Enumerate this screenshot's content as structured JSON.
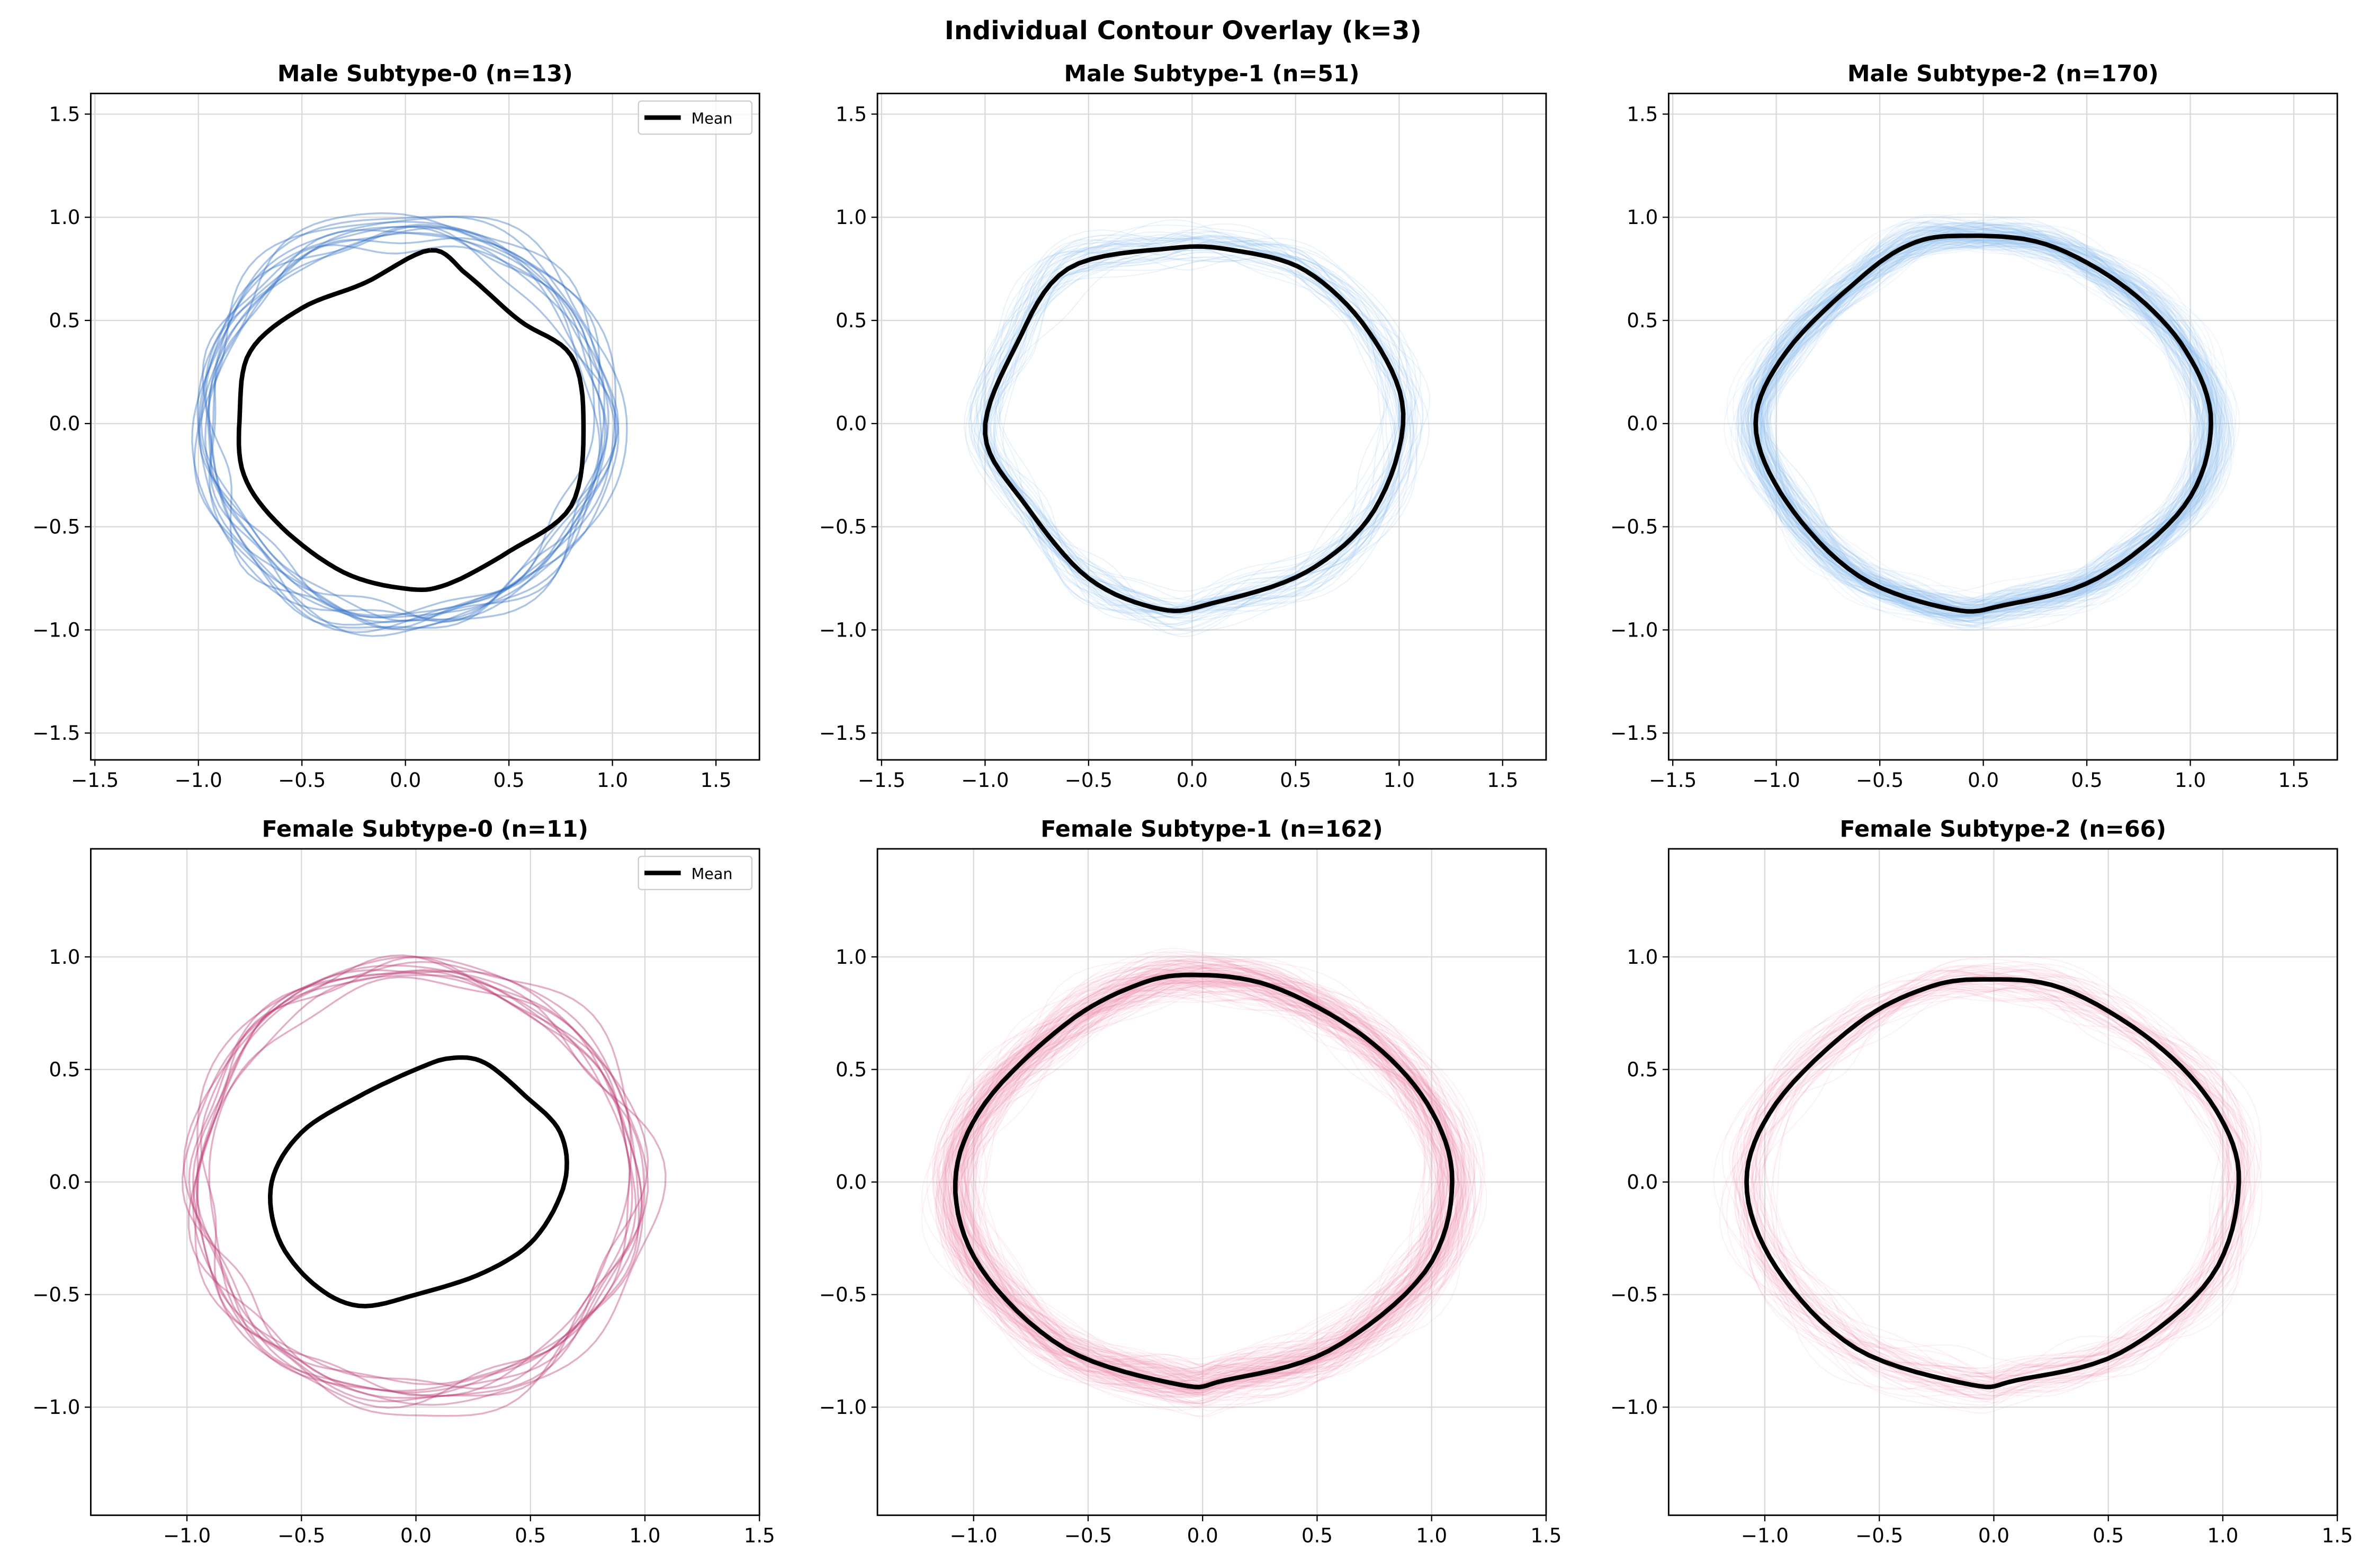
{
  "chart_data": {
    "type": "line",
    "title": "Individual Contour Overlay (k=3)",
    "legend_label": "Mean",
    "colors": {
      "male": "#2f6fc4",
      "male_light": "#8cbcf0",
      "female": "#b83a72",
      "female_light": "#f08db0",
      "mean": "#000000",
      "grid": "#d9d9d9"
    },
    "rows": [
      {
        "xlim": [
          -1.52,
          1.71
        ],
        "ylim": [
          -1.63,
          1.6
        ],
        "xticks": [
          -1.5,
          -1.0,
          -0.5,
          0.0,
          0.5,
          1.0,
          1.5
        ],
        "yticks": [
          -1.5,
          -1.0,
          -0.5,
          0.0,
          0.5,
          1.0,
          1.5
        ]
      },
      {
        "xlim": [
          -1.42,
          1.5
        ],
        "ylim": [
          -1.48,
          1.48
        ],
        "xticks": [
          -1.0,
          -0.5,
          0.0,
          0.5,
          1.0,
          1.5
        ],
        "yticks": [
          -1.0,
          -0.5,
          0.0,
          0.5,
          1.0
        ]
      }
    ],
    "panels": [
      {
        "title": "Male Subtype-0 (n=13)",
        "group": "male",
        "n": 13,
        "legend": true,
        "trace_shape": "circle",
        "trace_radius": 0.97,
        "trace_alpha": 0.4,
        "spread": 0.05,
        "mean": [
          [
            0.12,
            0.84
          ],
          [
            0.3,
            0.72
          ],
          [
            0.55,
            0.5
          ],
          [
            0.8,
            0.33
          ],
          [
            0.86,
            0
          ],
          [
            0.8,
            -0.4
          ],
          [
            0.5,
            -0.62
          ],
          [
            0.2,
            -0.78
          ],
          [
            0,
            -0.8
          ],
          [
            -0.3,
            -0.72
          ],
          [
            -0.6,
            -0.5
          ],
          [
            -0.78,
            -0.25
          ],
          [
            -0.8,
            0.05
          ],
          [
            -0.75,
            0.35
          ],
          [
            -0.5,
            0.56
          ],
          [
            -0.2,
            0.68
          ]
        ]
      },
      {
        "title": "Male Subtype-1 (n=51)",
        "group": "male",
        "n": 51,
        "legend": false,
        "trace_shape": "mean",
        "trace_alpha": 0.18,
        "spread": 0.06,
        "mean": [
          [
            -0.1,
            0.85
          ],
          [
            0.2,
            0.84
          ],
          [
            0.55,
            0.74
          ],
          [
            0.85,
            0.45
          ],
          [
            1.02,
            0.05
          ],
          [
            0.88,
            -0.42
          ],
          [
            0.55,
            -0.72
          ],
          [
            0.1,
            -0.87
          ],
          [
            -0.15,
            -0.9
          ],
          [
            -0.5,
            -0.75
          ],
          [
            -0.8,
            -0.4
          ],
          [
            -1.0,
            -0.05
          ],
          [
            -0.85,
            0.38
          ],
          [
            -0.6,
            0.75
          ]
        ]
      },
      {
        "title": "Male Subtype-2 (n=170)",
        "group": "male",
        "n": 170,
        "legend": false,
        "trace_shape": "mean",
        "trace_alpha": 0.12,
        "spread": 0.05,
        "mean": [
          [
            -0.1,
            0.91
          ],
          [
            0.3,
            0.87
          ],
          [
            0.7,
            0.65
          ],
          [
            0.98,
            0.35
          ],
          [
            1.1,
            0
          ],
          [
            0.97,
            -0.4
          ],
          [
            0.55,
            -0.75
          ],
          [
            0.1,
            -0.88
          ],
          [
            -0.15,
            -0.9
          ],
          [
            -0.6,
            -0.74
          ],
          [
            -0.95,
            -0.38
          ],
          [
            -1.1,
            0
          ],
          [
            -0.95,
            0.35
          ],
          [
            -0.6,
            0.7
          ],
          [
            -0.35,
            0.87
          ]
        ]
      },
      {
        "title": "Female Subtype-0 (n=11)",
        "group": "female",
        "n": 11,
        "legend": true,
        "trace_shape": "circle",
        "trace_radius": 0.96,
        "trace_alpha": 0.4,
        "spread": 0.05,
        "mean": [
          [
            0.15,
            0.55
          ],
          [
            0.3,
            0.53
          ],
          [
            0.48,
            0.38
          ],
          [
            0.63,
            0.22
          ],
          [
            0.65,
            0.0
          ],
          [
            0.52,
            -0.25
          ],
          [
            0.3,
            -0.4
          ],
          [
            0.0,
            -0.5
          ],
          [
            -0.25,
            -0.55
          ],
          [
            -0.45,
            -0.45
          ],
          [
            -0.6,
            -0.25
          ],
          [
            -0.63,
            0.0
          ],
          [
            -0.5,
            0.22
          ],
          [
            -0.25,
            0.38
          ],
          [
            0.0,
            0.5
          ]
        ]
      },
      {
        "title": "Female Subtype-1 (n=162)",
        "group": "female",
        "n": 162,
        "legend": false,
        "trace_shape": "mean",
        "trace_alpha": 0.12,
        "spread": 0.06,
        "mean": [
          [
            -0.05,
            0.92
          ],
          [
            0.3,
            0.87
          ],
          [
            0.7,
            0.65
          ],
          [
            0.98,
            0.35
          ],
          [
            1.09,
            0
          ],
          [
            0.97,
            -0.4
          ],
          [
            0.55,
            -0.75
          ],
          [
            0.1,
            -0.88
          ],
          [
            -0.1,
            -0.9
          ],
          [
            -0.6,
            -0.74
          ],
          [
            -0.97,
            -0.38
          ],
          [
            -1.08,
            0
          ],
          [
            -0.95,
            0.35
          ],
          [
            -0.6,
            0.7
          ],
          [
            -0.3,
            0.87
          ]
        ]
      },
      {
        "title": "Female Subtype-2 (n=66)",
        "group": "female",
        "n": 66,
        "legend": false,
        "trace_shape": "mean",
        "trace_alpha": 0.12,
        "spread": 0.06,
        "mean": [
          [
            -0.05,
            0.9
          ],
          [
            0.3,
            0.86
          ],
          [
            0.7,
            0.62
          ],
          [
            0.97,
            0.32
          ],
          [
            1.07,
            0
          ],
          [
            0.95,
            -0.42
          ],
          [
            0.55,
            -0.76
          ],
          [
            0.1,
            -0.88
          ],
          [
            -0.1,
            -0.9
          ],
          [
            -0.6,
            -0.74
          ],
          [
            -0.95,
            -0.38
          ],
          [
            -1.08,
            0
          ],
          [
            -0.95,
            0.35
          ],
          [
            -0.6,
            0.7
          ],
          [
            -0.3,
            0.86
          ]
        ]
      }
    ]
  }
}
